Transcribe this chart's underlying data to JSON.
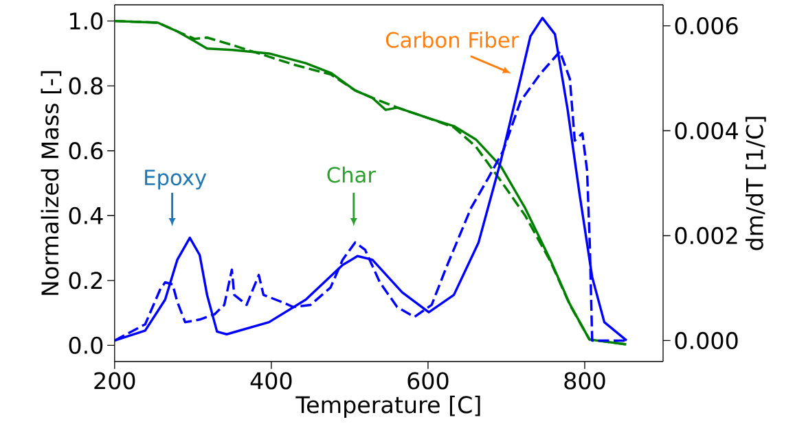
{
  "chart_data": {
    "type": "line",
    "xlabel": "Temperature [C]",
    "ylabel": "Normalized Mass [-]",
    "y2label": "dm/dT [1/C]",
    "xlim": [
      200,
      900
    ],
    "xticks": [
      200,
      400,
      600,
      800
    ],
    "ylim": [
      -0.05,
      1.05
    ],
    "yticks": [
      {
        "value": 0,
        "label": "0.0"
      },
      {
        "value": 0.2,
        "label": "0.2"
      },
      {
        "value": 0.4,
        "label": "0.4"
      },
      {
        "value": 0.6,
        "label": "0.6"
      },
      {
        "value": 0.8,
        "label": "0.8"
      },
      {
        "value": 1.0,
        "label": "1.0"
      }
    ],
    "y2lim": [
      -0.0004,
      0.0064
    ],
    "y2ticks": [
      {
        "value": 0,
        "label": "0.000"
      },
      {
        "value": 0.002,
        "label": "0.002"
      },
      {
        "value": 0.004,
        "label": "0.004"
      },
      {
        "value": 0.006,
        "label": "0.006"
      }
    ],
    "grid": false,
    "marker": "none",
    "series": [
      {
        "color": "#008000",
        "line_style": "solid",
        "x": [
          200,
          255,
          280,
          302,
          318,
          350,
          397,
          444,
          476,
          507,
          529,
          546,
          561,
          601,
          633,
          661,
          693,
          724,
          756,
          781,
          806,
          853
        ],
        "values": [
          1.0,
          0.995,
          0.968,
          0.938,
          0.915,
          0.911,
          0.9,
          0.87,
          0.84,
          0.786,
          0.763,
          0.726,
          0.733,
          0.7,
          0.676,
          0.635,
          0.552,
          0.423,
          0.264,
          0.127,
          0.018,
          0.003
        ]
      },
      {
        "color": "#008000",
        "line_style": "dashed",
        "x": [
          200,
          255,
          280,
          302,
          318,
          350,
          397,
          428,
          476,
          507,
          529,
          561,
          601,
          633,
          661,
          693,
          724,
          756,
          781,
          806,
          853
        ],
        "values": [
          1.0,
          0.995,
          0.968,
          0.945,
          0.949,
          0.926,
          0.89,
          0.866,
          0.835,
          0.786,
          0.763,
          0.733,
          0.7,
          0.672,
          0.613,
          0.507,
          0.4,
          0.26,
          0.125,
          0.018,
          0.003
        ]
      },
      {
        "color": "#0000ff",
        "line_style": "solid",
        "axis": "y2",
        "x": [
          200,
          239,
          264.5,
          280,
          296,
          308.6,
          318,
          330.7,
          343,
          397,
          444,
          491,
          510,
          529,
          567,
          601,
          633,
          664.5,
          693,
          718,
          730.7,
          746,
          762,
          778,
          793.6,
          809.5,
          825,
          853.5
        ],
        "values": [
          0.0,
          0.00019,
          0.00078,
          0.00154,
          0.00196,
          0.00163,
          0.00087,
          0.00017,
          0.00012,
          0.00035,
          0.00078,
          0.00144,
          0.00161,
          0.00154,
          0.00092,
          0.00054,
          0.00087,
          0.00187,
          0.00343,
          0.00499,
          0.0058,
          0.00615,
          0.00584,
          0.00442,
          0.00277,
          0.00121,
          0.00035,
          0.0
        ]
      },
      {
        "color": "#0000ff",
        "line_style": "dashed",
        "axis": "y2",
        "x": [
          200,
          239,
          258,
          264.5,
          274,
          280,
          290,
          308.6,
          327.5,
          340,
          349.6,
          352.7,
          368.5,
          384,
          390,
          412.6,
          428,
          450,
          475.6,
          491,
          507,
          519.7,
          538.5,
          560.6,
          582.6,
          604.7,
          623.5,
          655,
          677,
          696,
          718,
          743,
          768.4,
          781,
          787.3,
          797,
          803,
          806.5,
          809.5,
          835.6,
          853.5
        ],
        "values": [
          0.0,
          0.00031,
          0.00097,
          0.00111,
          0.00107,
          0.00074,
          0.00035,
          0.0004,
          0.0005,
          0.00068,
          0.00135,
          0.00087,
          0.00068,
          0.00125,
          0.00087,
          0.00074,
          0.00064,
          0.00068,
          0.00101,
          0.00154,
          0.00187,
          0.00173,
          0.00111,
          0.00064,
          0.00045,
          0.00068,
          0.0014,
          0.00253,
          0.0031,
          0.00362,
          0.00456,
          0.00508,
          0.00551,
          0.00499,
          0.00381,
          0.00395,
          0.00324,
          0.00182,
          0.0,
          0.0,
          0.0
        ]
      }
    ],
    "annotations": [
      "Epoxy",
      "Char",
      "Carbon Fiber"
    ]
  }
}
